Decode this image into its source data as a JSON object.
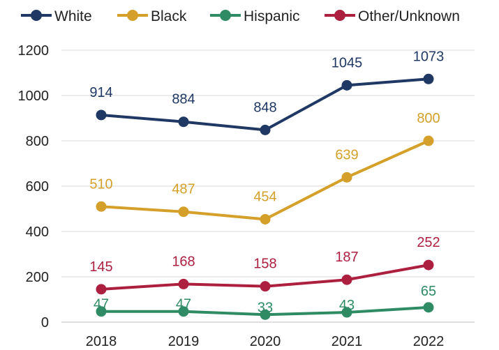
{
  "chart_data": {
    "type": "line",
    "categories": [
      "2018",
      "2019",
      "2020",
      "2021",
      "2022"
    ],
    "ylim": [
      0,
      1200
    ],
    "yticks": [
      "0",
      "200",
      "400",
      "600",
      "800",
      "1000",
      "1200"
    ],
    "grid": true,
    "legend_position": "top",
    "data_labels": true,
    "series": [
      {
        "name": "White",
        "color": "#1f3864",
        "values": [
          914,
          884,
          848,
          1045,
          1073
        ]
      },
      {
        "name": "Black",
        "color": "#d4a02a",
        "values": [
          510,
          487,
          454,
          639,
          800
        ]
      },
      {
        "name": "Hispanic",
        "color": "#2e8b64",
        "values": [
          47,
          47,
          33,
          43,
          65
        ]
      },
      {
        "name": "Other/Unknown",
        "color": "#ad1f3f",
        "values": [
          145,
          168,
          158,
          187,
          252
        ]
      }
    ]
  }
}
